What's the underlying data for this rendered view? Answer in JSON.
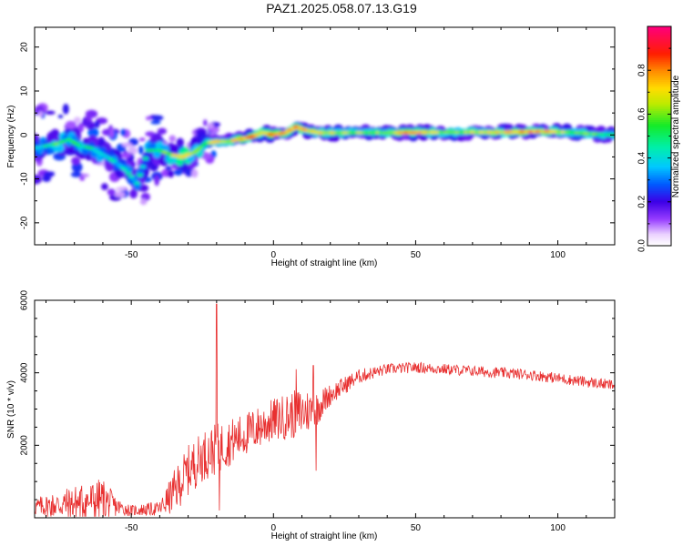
{
  "title": "PAZ1.2025.058.07.13.G19",
  "chart_data": [
    {
      "type": "heatmap",
      "xlabel": "Height of straight line (km)",
      "ylabel": "Frequency (Hz)",
      "xlim": [
        -84,
        120
      ],
      "ylim": [
        -25,
        24.5
      ],
      "xticks": [
        -50,
        0,
        50,
        100
      ],
      "yticks": [
        -20,
        -10,
        0,
        10,
        20
      ],
      "colorbar": {
        "label": "Normalized spectral amplitude",
        "ticks": [
          "0.0",
          "0.2",
          "0.4",
          "0.6",
          "0.8"
        ],
        "range": [
          0,
          1
        ]
      },
      "ridge": [
        {
          "x": -80,
          "y": -2.5,
          "a": 0.45
        },
        {
          "x": -76,
          "y": -2.0,
          "a": 0.55
        },
        {
          "x": -72,
          "y": -1.0,
          "a": 0.5
        },
        {
          "x": -68,
          "y": -2.5,
          "a": 0.5
        },
        {
          "x": -64,
          "y": -3.0,
          "a": 0.45
        },
        {
          "x": -60,
          "y": -4.5,
          "a": 0.45
        },
        {
          "x": -56,
          "y": -6.0,
          "a": 0.4
        },
        {
          "x": -52,
          "y": -8.0,
          "a": 0.4
        },
        {
          "x": -48,
          "y": -11.0,
          "a": 0.4
        },
        {
          "x": -44,
          "y": -3.5,
          "a": 0.45
        },
        {
          "x": -40,
          "y": -3.5,
          "a": 0.55
        },
        {
          "x": -36,
          "y": -4.5,
          "a": 0.6
        },
        {
          "x": -32,
          "y": -5.0,
          "a": 0.75
        },
        {
          "x": -28,
          "y": -4.0,
          "a": 0.6
        },
        {
          "x": -24,
          "y": -2.0,
          "a": 0.55
        },
        {
          "x": -20,
          "y": -1.5,
          "a": 0.7
        },
        {
          "x": -16,
          "y": -1.5,
          "a": 0.65
        },
        {
          "x": -12,
          "y": -1.0,
          "a": 0.75
        },
        {
          "x": -8,
          "y": -0.5,
          "a": 0.8
        },
        {
          "x": -4,
          "y": 0.5,
          "a": 0.7
        },
        {
          "x": 0,
          "y": 0.0,
          "a": 0.85
        },
        {
          "x": 4,
          "y": 0.5,
          "a": 0.75
        },
        {
          "x": 8,
          "y": 1.8,
          "a": 0.8
        },
        {
          "x": 12,
          "y": 1.0,
          "a": 0.7
        },
        {
          "x": 16,
          "y": 0.5,
          "a": 0.7
        },
        {
          "x": 24,
          "y": 0.5,
          "a": 0.65
        },
        {
          "x": 32,
          "y": 0.5,
          "a": 0.6
        },
        {
          "x": 40,
          "y": 0.5,
          "a": 0.6
        },
        {
          "x": 48,
          "y": 0.5,
          "a": 0.8
        },
        {
          "x": 56,
          "y": 0.6,
          "a": 0.65
        },
        {
          "x": 64,
          "y": 0.6,
          "a": 0.6
        },
        {
          "x": 72,
          "y": 0.6,
          "a": 0.65
        },
        {
          "x": 80,
          "y": 0.6,
          "a": 0.7
        },
        {
          "x": 88,
          "y": 0.7,
          "a": 0.8
        },
        {
          "x": 96,
          "y": 0.8,
          "a": 0.75
        },
        {
          "x": 104,
          "y": 0.6,
          "a": 0.6
        },
        {
          "x": 112,
          "y": 0.2,
          "a": 0.55
        },
        {
          "x": 120,
          "y": 0.0,
          "a": 0.5
        }
      ]
    },
    {
      "type": "line",
      "xlabel": "Height of straight line (km)",
      "ylabel": "SNR (10 * v/v)",
      "xlim": [
        -84,
        120
      ],
      "ylim": [
        0,
        6000
      ],
      "xticks": [
        -50,
        0,
        50,
        100
      ],
      "yticks": [
        2000,
        4000,
        6000
      ],
      "color": "#e83030",
      "envelope": [
        {
          "x": -84,
          "mean": 300,
          "amp": 250
        },
        {
          "x": -70,
          "mean": 400,
          "amp": 500
        },
        {
          "x": -60,
          "mean": 500,
          "amp": 600
        },
        {
          "x": -55,
          "mean": 300,
          "amp": 250
        },
        {
          "x": -50,
          "mean": 200,
          "amp": 150
        },
        {
          "x": -40,
          "mean": 250,
          "amp": 200
        },
        {
          "x": -35,
          "mean": 700,
          "amp": 600
        },
        {
          "x": -30,
          "mean": 1300,
          "amp": 700
        },
        {
          "x": -25,
          "mean": 1700,
          "amp": 700
        },
        {
          "x": -20,
          "mean": 1900,
          "amp": 700
        },
        {
          "x": -10,
          "mean": 2300,
          "amp": 600
        },
        {
          "x": 0,
          "mean": 2700,
          "amp": 600
        },
        {
          "x": 10,
          "mean": 2900,
          "amp": 700
        },
        {
          "x": 15,
          "mean": 3000,
          "amp": 500
        },
        {
          "x": 20,
          "mean": 3400,
          "amp": 300
        },
        {
          "x": 30,
          "mean": 3900,
          "amp": 200
        },
        {
          "x": 40,
          "mean": 4100,
          "amp": 150
        },
        {
          "x": 50,
          "mean": 4150,
          "amp": 150
        },
        {
          "x": 60,
          "mean": 4100,
          "amp": 150
        },
        {
          "x": 70,
          "mean": 4050,
          "amp": 150
        },
        {
          "x": 80,
          "mean": 4000,
          "amp": 150
        },
        {
          "x": 90,
          "mean": 3950,
          "amp": 150
        },
        {
          "x": 100,
          "mean": 3850,
          "amp": 150
        },
        {
          "x": 110,
          "mean": 3750,
          "amp": 150
        },
        {
          "x": 120,
          "mean": 3650,
          "amp": 150
        }
      ],
      "spikes": [
        {
          "x": -20,
          "y": 5900
        },
        {
          "x": 8,
          "y": 4100
        },
        {
          "x": 14,
          "y": 4200
        },
        {
          "x": 15,
          "y": 1300
        },
        {
          "x": -19,
          "y": 200
        }
      ]
    }
  ]
}
